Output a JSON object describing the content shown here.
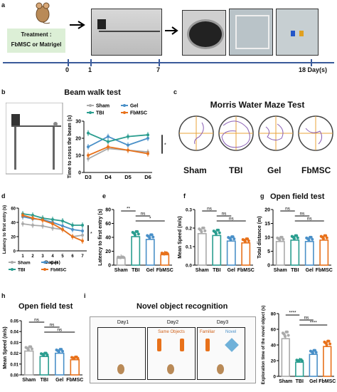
{
  "panels": {
    "a": {
      "letter": "a",
      "treatment": "Treatment :",
      "treatment_groups": "FbMSC or Matrigel",
      "ticks": [
        "0",
        "1",
        "7",
        "18 Day(s)"
      ]
    },
    "b": {
      "letter": "b",
      "title": "Beam walk test"
    },
    "c": {
      "letter": "c",
      "title": "Morris Water Maze Test",
      "groups": [
        "Sham",
        "TBI",
        "Gel",
        "FbMSC"
      ]
    },
    "d": {
      "letter": "d"
    },
    "e": {
      "letter": "e"
    },
    "f": {
      "letter": "f"
    },
    "g": {
      "letter": "g",
      "title": "Open field test"
    },
    "h": {
      "letter": "h",
      "title": "Open field test"
    },
    "i": {
      "letter": "i",
      "title": "Novel object recognition",
      "days": [
        "Day1",
        "Day2",
        "Day3"
      ],
      "same_objects": "Same Objects",
      "familiar": "Familiar",
      "novel": "Novel"
    }
  },
  "colors": {
    "sham": "#aaaaaa",
    "tbi": "#2a9d8f",
    "gel": "#4a90c8",
    "fbmsc": "#e8711a",
    "frame": "#222222"
  },
  "chart_data": [
    {
      "panel": "b",
      "type": "line",
      "x": [
        "D3",
        "D4",
        "D5",
        "D6"
      ],
      "ylabel": "Time to cross the beam (s)",
      "ylim": [
        0,
        30
      ],
      "yticks": [
        "0",
        "10",
        "20",
        "30"
      ],
      "legend": [
        "Sham",
        "Gel",
        "TBI",
        "FbMSC"
      ],
      "series": [
        {
          "name": "Sham",
          "values": [
            8,
            14,
            13,
            12
          ],
          "color": "#aaaaaa"
        },
        {
          "name": "Gel",
          "values": [
            15,
            21,
            16,
            20
          ],
          "color": "#4a90c8"
        },
        {
          "name": "TBI",
          "values": [
            23,
            18,
            21,
            22
          ],
          "color": "#2a9d8f"
        },
        {
          "name": "FbMSC",
          "values": [
            10,
            15,
            13,
            11
          ],
          "color": "#e8711a"
        }
      ],
      "significance": [
        "*"
      ]
    },
    {
      "panel": "d",
      "type": "line",
      "x": [
        "1",
        "2",
        "3",
        "4",
        "5",
        "6",
        "7"
      ],
      "xlabel": "Day (s)",
      "ylabel": "Latency to first entry (s)",
      "ylim": [
        0,
        60
      ],
      "yticks": [
        "0",
        "20",
        "40",
        "60"
      ],
      "legend": [
        "Sham",
        "Gel",
        "TBI",
        "FbMSC"
      ],
      "series": [
        {
          "name": "Sham",
          "values": [
            38,
            36,
            35,
            32,
            30,
            20,
            22
          ],
          "color": "#aaaaaa"
        },
        {
          "name": "Gel",
          "values": [
            48,
            45,
            44,
            40,
            35,
            30,
            28
          ],
          "color": "#4a90c8"
        },
        {
          "name": "TBI",
          "values": [
            52,
            50,
            46,
            44,
            42,
            36,
            36
          ],
          "color": "#2a9d8f"
        },
        {
          "name": "FbMSC",
          "values": [
            50,
            46,
            43,
            38,
            30,
            20,
            14
          ],
          "color": "#e8711a"
        }
      ],
      "significance": [
        "*"
      ]
    },
    {
      "panel": "e",
      "type": "bar",
      "categories": [
        "Sham",
        "TBI",
        "Gel",
        "FbMSC"
      ],
      "values": [
        10,
        41,
        37,
        15
      ],
      "ylabel": "Latency to first entry (s)",
      "ylim": [
        0,
        80
      ],
      "yticks": [
        "0",
        "20",
        "40",
        "60",
        "80"
      ],
      "significance": [
        "**",
        "ns",
        "*"
      ]
    },
    {
      "panel": "f",
      "type": "bar",
      "categories": [
        "Sham",
        "TBI",
        "Gel",
        "FbMSC"
      ],
      "values": [
        0.17,
        0.16,
        0.13,
        0.12
      ],
      "ylabel": "Mean Speed (m/s)",
      "ylim": [
        0,
        0.3
      ],
      "yticks": [
        "0.0",
        "0.1",
        "0.2",
        "0.3"
      ],
      "significance": [
        "ns",
        "ns",
        "ns"
      ]
    },
    {
      "panel": "g",
      "type": "bar",
      "categories": [
        "Sham",
        "TBI",
        "Gel",
        "FbMSC"
      ],
      "values": [
        8.5,
        9,
        8.5,
        9
      ],
      "ylabel": "Total distance (m)",
      "ylim": [
        0,
        20
      ],
      "yticks": [
        "0",
        "5",
        "10",
        "15",
        "20"
      ],
      "significance": [
        "ns",
        "ns",
        "ns"
      ]
    },
    {
      "panel": "h",
      "type": "bar",
      "categories": [
        "Sham",
        "TBI",
        "Gel",
        "FbMSC"
      ],
      "values": [
        0.022,
        0.017,
        0.02,
        0.014
      ],
      "ylabel": "Mean Speed (m/s)",
      "ylim": [
        0,
        0.05
      ],
      "yticks": [
        "0.00",
        "0.01",
        "0.02",
        "0.03",
        "0.04",
        "0.05"
      ],
      "significance": [
        "ns",
        "ns",
        "ns"
      ]
    },
    {
      "panel": "i",
      "type": "bar",
      "categories": [
        "Sham",
        "TBI",
        "Gel",
        "FbMSC"
      ],
      "values": [
        48,
        18,
        28,
        38
      ],
      "ylabel": "Exploration time of the novel object (s)",
      "ylim": [
        0,
        80
      ],
      "yticks": [
        "0",
        "20",
        "40",
        "60",
        "80"
      ],
      "significance": [
        "****",
        "ns",
        "****"
      ]
    }
  ]
}
